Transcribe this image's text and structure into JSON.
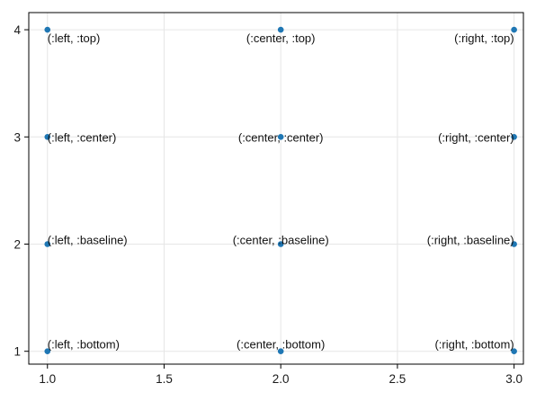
{
  "chart_data": {
    "type": "scatter",
    "title": "",
    "xlabel": "",
    "ylabel": "",
    "xlim": [
      0.92,
      3.04
    ],
    "ylim": [
      0.88,
      4.16
    ],
    "xticks": [
      1.0,
      1.5,
      2.0,
      2.5,
      3.0
    ],
    "xtick_labels": [
      "1.0",
      "1.5",
      "2.0",
      "2.5",
      "3.0"
    ],
    "yticks": [
      1,
      2,
      3,
      4
    ],
    "ytick_labels": [
      "1",
      "2",
      "3",
      "4"
    ],
    "grid": true,
    "legend": false,
    "marker_color": "#1f77b4",
    "points": [
      {
        "x": 1,
        "y": 4,
        "label": "(:left, :top)",
        "align": [
          "left",
          "top"
        ]
      },
      {
        "x": 2,
        "y": 4,
        "label": "(:center, :top)",
        "align": [
          "center",
          "top"
        ]
      },
      {
        "x": 3,
        "y": 4,
        "label": "(:right, :top)",
        "align": [
          "right",
          "top"
        ]
      },
      {
        "x": 1,
        "y": 3,
        "label": "(:left, :center)",
        "align": [
          "left",
          "center"
        ]
      },
      {
        "x": 2,
        "y": 3,
        "label": "(:center, :center)",
        "align": [
          "center",
          "center"
        ]
      },
      {
        "x": 3,
        "y": 3,
        "label": "(:right, :center)",
        "align": [
          "right",
          "center"
        ]
      },
      {
        "x": 1,
        "y": 2,
        "label": "(:left, :baseline)",
        "align": [
          "left",
          "baseline"
        ]
      },
      {
        "x": 2,
        "y": 2,
        "label": "(:center, :baseline)",
        "align": [
          "center",
          "baseline"
        ]
      },
      {
        "x": 3,
        "y": 2,
        "label": "(:right, :baseline)",
        "align": [
          "right",
          "baseline"
        ]
      },
      {
        "x": 1,
        "y": 1,
        "label": "(:left, :bottom)",
        "align": [
          "left",
          "bottom"
        ]
      },
      {
        "x": 2,
        "y": 1,
        "label": "(:center, :bottom)",
        "align": [
          "center",
          "bottom"
        ]
      },
      {
        "x": 3,
        "y": 1,
        "label": "(:right, :bottom)",
        "align": [
          "right",
          "bottom"
        ]
      }
    ]
  }
}
